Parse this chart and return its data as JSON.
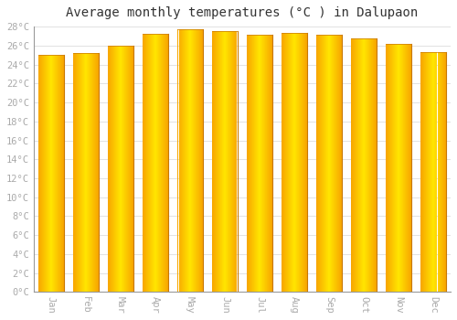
{
  "title": "Average monthly temperatures (°C ) in Dalupaon",
  "months": [
    "Jan",
    "Feb",
    "Mar",
    "Apr",
    "May",
    "Jun",
    "Jul",
    "Aug",
    "Sep",
    "Oct",
    "Nov",
    "Dec"
  ],
  "values": [
    25.0,
    25.2,
    26.0,
    27.2,
    27.7,
    27.5,
    27.1,
    27.3,
    27.1,
    26.8,
    26.2,
    25.3
  ],
  "bar_color_center": "#FFD040",
  "bar_color_edge": "#F5A000",
  "bar_border_color": "#B8860B",
  "ylim": [
    0,
    28
  ],
  "ytick_step": 2,
  "background_color": "#FFFFFF",
  "plot_bg_color": "#FFFFFF",
  "grid_color": "#DDDDDD",
  "title_fontsize": 10,
  "tick_fontsize": 7.5,
  "tick_label_color": "#AAAAAA",
  "font_family": "monospace"
}
